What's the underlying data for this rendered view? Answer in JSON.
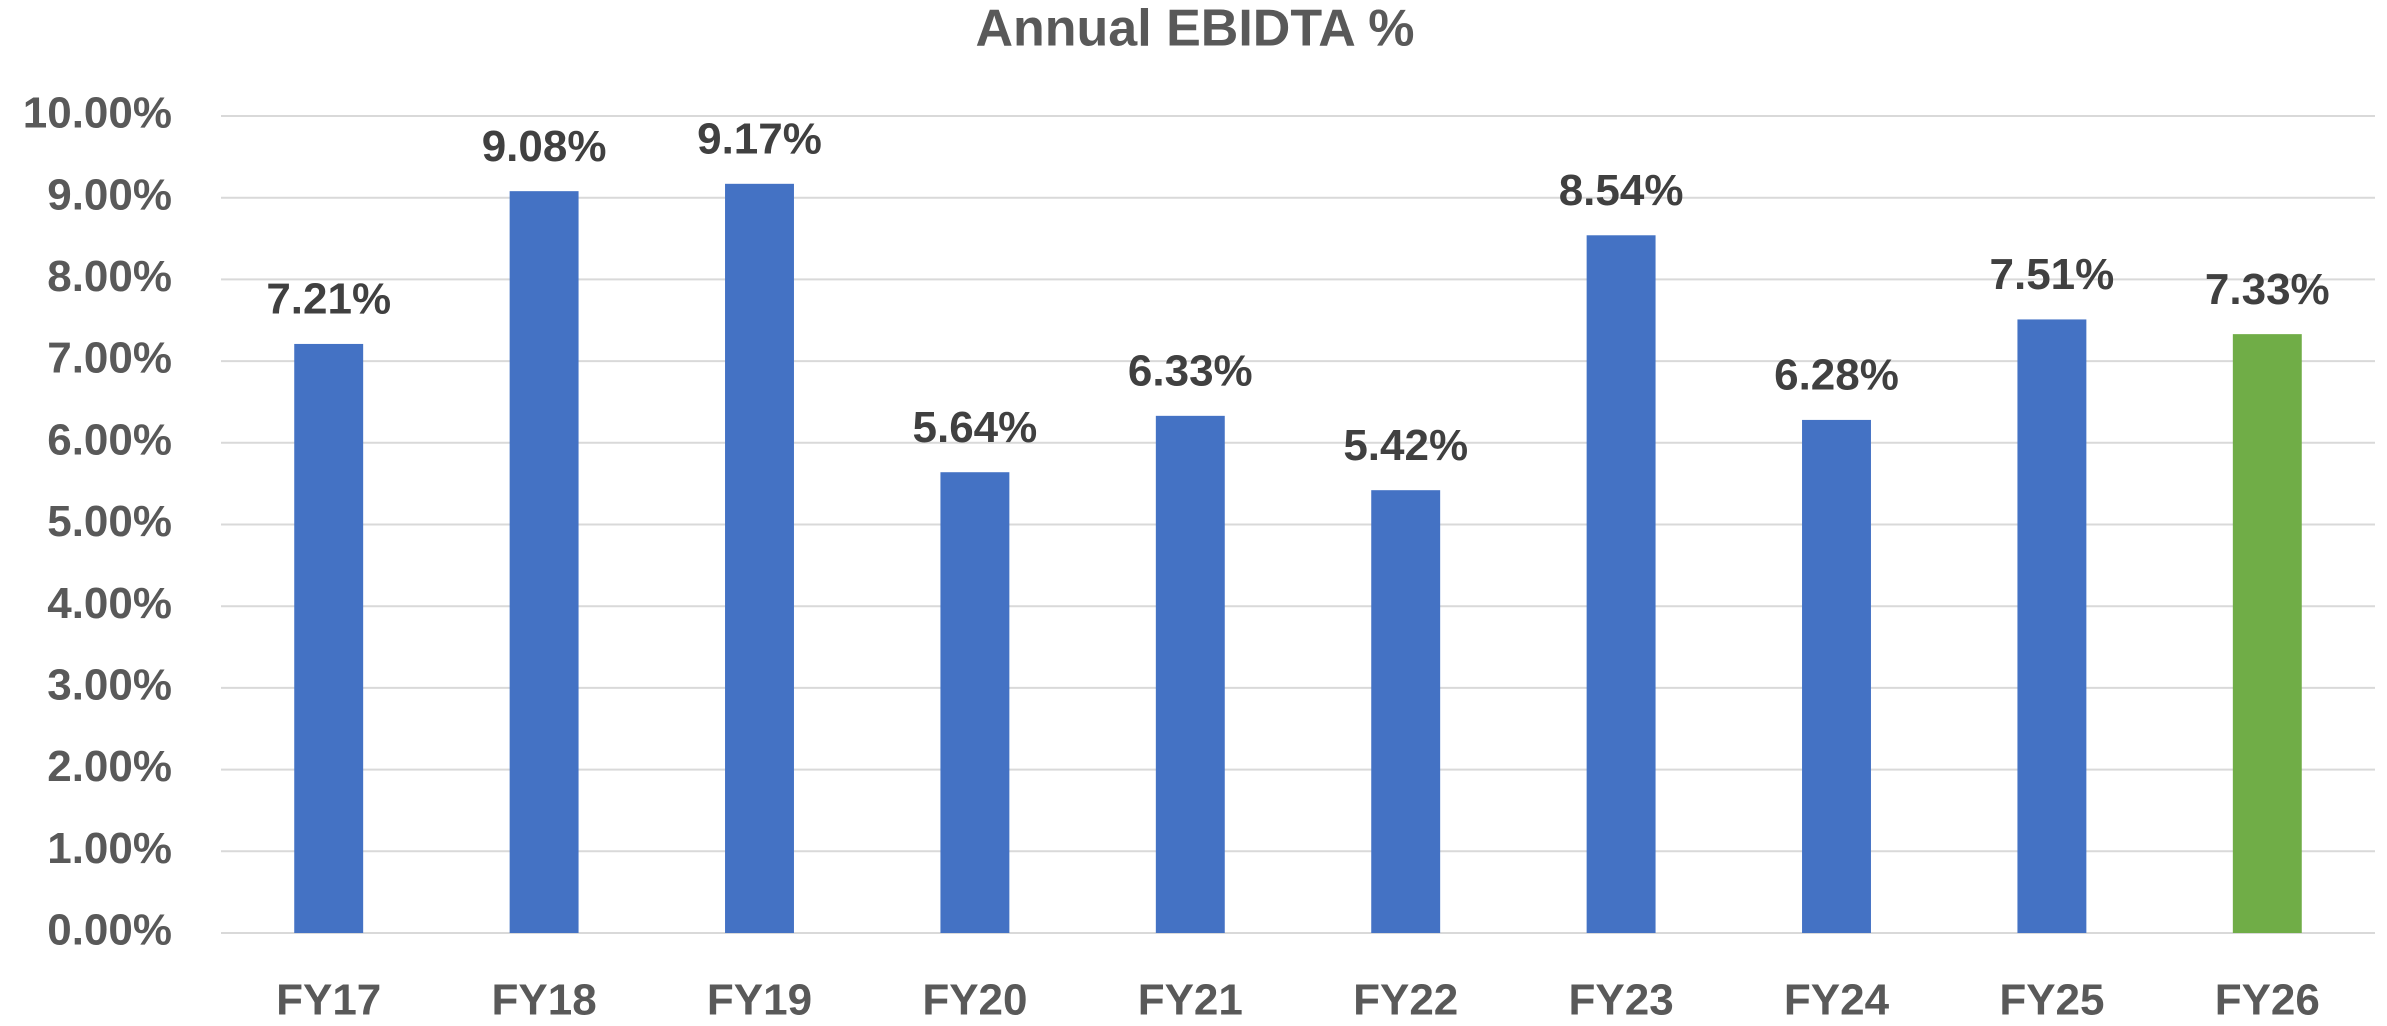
{
  "chart_data": {
    "type": "bar",
    "title": "Annual EBIDTA %",
    "categories": [
      "FY17",
      "FY18",
      "FY19",
      "FY20",
      "FY21",
      "FY22",
      "FY23",
      "FY24",
      "FY25",
      "FY26"
    ],
    "values": [
      7.21,
      9.08,
      9.17,
      5.64,
      6.33,
      5.42,
      8.54,
      6.28,
      7.51,
      7.33
    ],
    "value_labels": [
      "7.21%",
      "9.08%",
      "9.17%",
      "5.64%",
      "6.33%",
      "5.42%",
      "8.54%",
      "6.28%",
      "7.51%",
      "7.33%"
    ],
    "colors": [
      "#4472c4",
      "#4472c4",
      "#4472c4",
      "#4472c4",
      "#4472c4",
      "#4472c4",
      "#4472c4",
      "#4472c4",
      "#4472c4",
      "#70ad47"
    ],
    "ylim": [
      0,
      10
    ],
    "yticks": [
      {
        "value": 0,
        "label": "0.00%"
      },
      {
        "value": 1,
        "label": "1.00%"
      },
      {
        "value": 2,
        "label": "2.00%"
      },
      {
        "value": 3,
        "label": "3.00%"
      },
      {
        "value": 4,
        "label": "4.00%"
      },
      {
        "value": 5,
        "label": "5.00%"
      },
      {
        "value": 6,
        "label": "6.00%"
      },
      {
        "value": 7,
        "label": "7.00%"
      },
      {
        "value": 8,
        "label": "8.00%"
      },
      {
        "value": 9,
        "label": "9.00%"
      },
      {
        "value": 10,
        "label": "10.00%"
      }
    ],
    "grid": true
  }
}
